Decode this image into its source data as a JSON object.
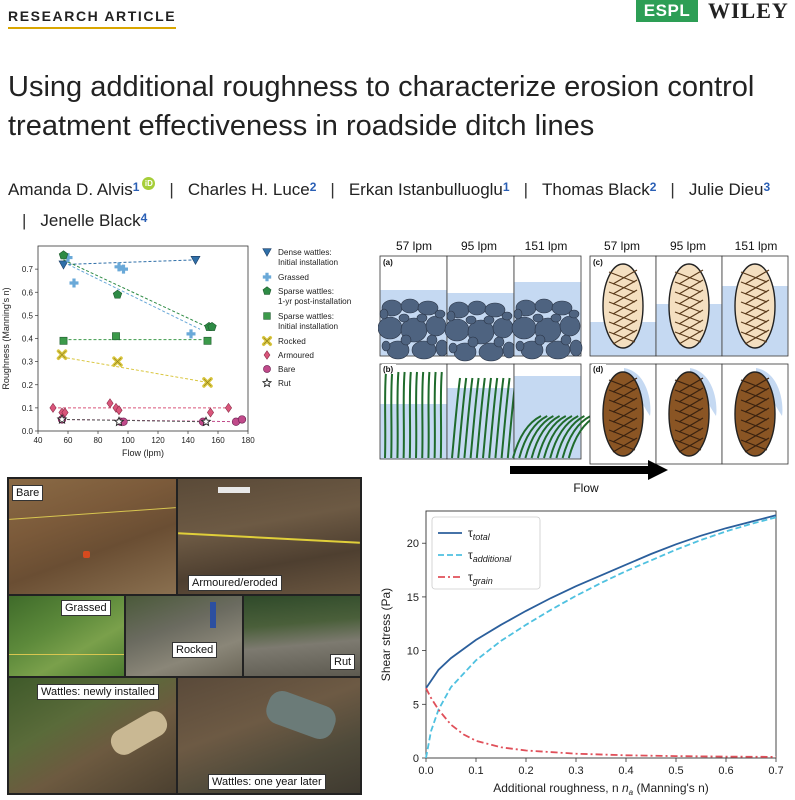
{
  "header": {
    "kicker": "RESEARCH ARTICLE",
    "journal_badge": "ESPL",
    "publisher": "WILEY"
  },
  "title": "Using additional roughness to characterize erosion control treatment effectiveness in roadside ditch lines",
  "authors": [
    {
      "name": "Amanda D. Alvis",
      "aff": "1",
      "orcid": true
    },
    {
      "name": "Charles H. Luce",
      "aff": "2"
    },
    {
      "name": "Erkan Istanbulluoglu",
      "aff": "1"
    },
    {
      "name": "Thomas Black",
      "aff": "2"
    },
    {
      "name": "Julie Dieu",
      "aff": "3"
    },
    {
      "name": "Jenelle Black",
      "aff": "4"
    }
  ],
  "colors": {
    "dense": "#2f6fa8",
    "grassed": "#6aa9d8",
    "sparse1": "#2e8b45",
    "sparse0": "#3c9a4a",
    "rocked": "#d9c63f",
    "armoured": "#d9557a",
    "bare": "#c04a8a",
    "rut": "#555555",
    "tau_total": "#2b5f9c",
    "tau_add": "#4fc1e0",
    "tau_grain": "#e0505a"
  },
  "figure_schematic": {
    "flows": [
      "57 lpm",
      "95 lpm",
      "151 lpm",
      "57 lpm",
      "95 lpm",
      "151 lpm"
    ],
    "panels": [
      "(a)",
      "(b)",
      "(c)",
      "(d)"
    ],
    "flow_label": "Flow"
  },
  "photos": {
    "labels": [
      "Bare",
      "Armoured/eroded",
      "Grassed",
      "Rocked",
      "Rut",
      "Wattles: newly installed",
      "Wattles: one year later"
    ]
  },
  "chart_data": [
    {
      "type": "scatter",
      "xlabel": "Flow (lpm)",
      "ylabel": "Roughness (Manning's n)",
      "xlim": [
        40,
        180
      ],
      "ylim": [
        0,
        0.8
      ],
      "xticks": [
        "40",
        "60",
        "80",
        "100",
        "120",
        "140",
        "160",
        "180"
      ],
      "yticks": [
        "0.0",
        "0.1",
        "0.2",
        "0.3",
        "0.4",
        "0.5",
        "0.6",
        "0.7"
      ],
      "legend_position": "right",
      "series": [
        {
          "name": "Dense wattles:\nInitial installation",
          "key": "dense",
          "marker": "tri-down",
          "x": [
            57,
            145
          ],
          "y": [
            0.72,
            0.74
          ],
          "trend": [
            [
              57,
              0.72
            ],
            [
              145,
              0.74
            ]
          ]
        },
        {
          "name": "Grassed",
          "key": "grassed",
          "marker": "plus",
          "x": [
            60,
            64,
            94,
            97,
            142
          ],
          "y": [
            0.75,
            0.64,
            0.71,
            0.7,
            0.42
          ],
          "trend": [
            [
              57,
              0.73
            ],
            [
              148,
              0.44
            ]
          ]
        },
        {
          "name": "Sparse wattles:\n1-yr post-installation",
          "key": "sparse1",
          "marker": "pentagon",
          "x": [
            57,
            93,
            154,
            156
          ],
          "y": [
            0.76,
            0.59,
            0.45,
            0.45
          ],
          "trend": [
            [
              57,
              0.74
            ],
            [
              156,
              0.44
            ]
          ]
        },
        {
          "name": "Sparse wattles:\nInitial installation",
          "key": "sparse0",
          "marker": "square",
          "x": [
            57,
            92,
            153
          ],
          "y": [
            0.39,
            0.41,
            0.39
          ],
          "trend": [
            [
              57,
              0.395
            ],
            [
              153,
              0.395
            ]
          ]
        },
        {
          "name": "Rocked",
          "key": "rocked",
          "marker": "x-thick",
          "x": [
            56,
            93,
            153
          ],
          "y": [
            0.33,
            0.3,
            0.21
          ],
          "trend": [
            [
              56,
              0.32
            ],
            [
              153,
              0.21
            ]
          ]
        },
        {
          "name": "Armoured",
          "key": "armoured",
          "marker": "diamond",
          "x": [
            50,
            56,
            58,
            88,
            92,
            94,
            155,
            167
          ],
          "y": [
            0.1,
            0.08,
            0.08,
            0.12,
            0.1,
            0.09,
            0.08,
            0.1
          ],
          "trend": [
            [
              50,
              0.1
            ],
            [
              167,
              0.1
            ]
          ]
        },
        {
          "name": "Bare",
          "key": "bare",
          "marker": "circle",
          "x": [
            56,
            95,
            97,
            150,
            172,
            176
          ],
          "y": [
            0.05,
            0.04,
            0.04,
            0.04,
            0.04,
            0.05
          ],
          "trend": [
            [
              56,
              0.05
            ],
            [
              176,
              0.04
            ]
          ]
        },
        {
          "name": "Rut",
          "key": "rut",
          "marker": "star",
          "x": [
            56,
            94,
            152
          ],
          "y": [
            0.05,
            0.04,
            0.04
          ],
          "trend": [
            [
              56,
              0.05
            ],
            [
              152,
              0.04
            ]
          ]
        }
      ]
    },
    {
      "type": "line",
      "xlabel": "Additional roughness, n",
      "xlabel_sub": "a",
      "xlabel_tail": " (Manning's n)",
      "ylabel": "Shear stress (Pa)",
      "xlim": [
        0,
        0.7
      ],
      "ylim": [
        0,
        23
      ],
      "xticks": [
        "0.0",
        "0.1",
        "0.2",
        "0.3",
        "0.4",
        "0.5",
        "0.6",
        "0.7"
      ],
      "yticks": [
        "0",
        "5",
        "10",
        "15",
        "20"
      ],
      "legend_position": "top-left",
      "series": [
        {
          "name": "τ",
          "sub": "total",
          "key": "tau_total",
          "style": "solid",
          "x": [
            0,
            0.025,
            0.05,
            0.1,
            0.15,
            0.2,
            0.25,
            0.3,
            0.35,
            0.4,
            0.45,
            0.5,
            0.55,
            0.6,
            0.65,
            0.7
          ],
          "y": [
            6.5,
            8.2,
            9.3,
            11.0,
            12.4,
            13.7,
            14.9,
            16.0,
            17.0,
            18.0,
            19.0,
            19.9,
            20.7,
            21.4,
            22.0,
            22.6
          ]
        },
        {
          "name": "τ",
          "sub": "additional",
          "key": "tau_add",
          "style": "dashed",
          "x": [
            0,
            0.01,
            0.025,
            0.05,
            0.1,
            0.15,
            0.2,
            0.25,
            0.3,
            0.35,
            0.4,
            0.45,
            0.5,
            0.55,
            0.6,
            0.65,
            0.7
          ],
          "y": [
            0,
            2.5,
            4.5,
            6.6,
            9.1,
            10.9,
            12.4,
            13.8,
            15.1,
            16.3,
            17.4,
            18.4,
            19.4,
            20.3,
            21.1,
            21.8,
            22.4
          ]
        },
        {
          "name": "τ",
          "sub": "grain",
          "key": "tau_grain",
          "style": "dashdot",
          "x": [
            0,
            0.01,
            0.025,
            0.05,
            0.075,
            0.1,
            0.15,
            0.2,
            0.3,
            0.4,
            0.5,
            0.6,
            0.7
          ],
          "y": [
            6.5,
            5.6,
            4.5,
            3.1,
            2.2,
            1.6,
            1.0,
            0.7,
            0.4,
            0.25,
            0.18,
            0.13,
            0.1
          ]
        }
      ]
    }
  ]
}
